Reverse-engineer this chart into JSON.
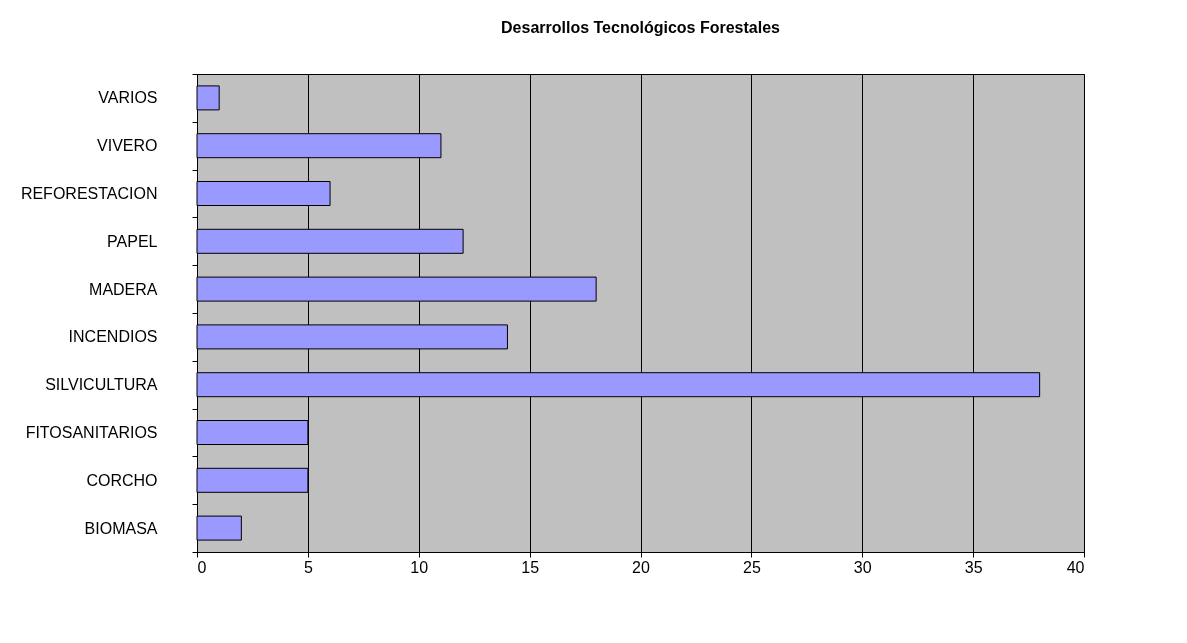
{
  "chart_data": {
    "type": "bar",
    "orientation": "horizontal",
    "title": "Desarrollos Tecnológicos Forestales",
    "categories": [
      "VARIOS",
      "VIVERO",
      "REFORESTACION",
      "PAPEL",
      "MADERA",
      "INCENDIOS",
      "SILVICULTURA",
      "FITOSANITARIOS",
      "CORCHO",
      "BIOMASA"
    ],
    "values": [
      1,
      11,
      6,
      12,
      18,
      14,
      38,
      5,
      5,
      2
    ],
    "color": "#9999ff",
    "xlim": [
      0,
      40
    ],
    "xticks": [
      0,
      5,
      10,
      15,
      20,
      25,
      30,
      35,
      40
    ],
    "grid": "x"
  }
}
